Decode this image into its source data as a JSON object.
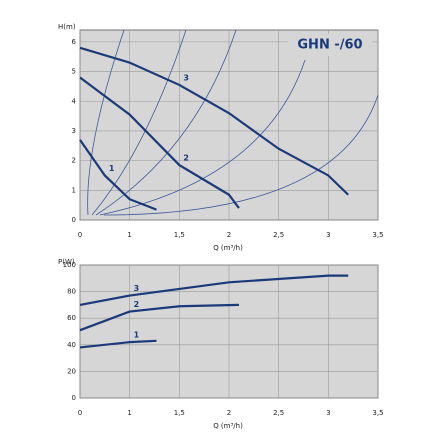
{
  "chart_data": [
    {
      "type": "line",
      "title": "GHN -/60",
      "ylabel": "H(m)",
      "xlabel": "Q (m³/h)",
      "xlim": [
        0.5,
        3.5
      ],
      "xticks": [
        {
          "value": 0.5,
          "label": "0"
        },
        1,
        {
          "value": 1.5,
          "label": "1,5"
        },
        2,
        {
          "value": 2.5,
          "label": "2,5"
        },
        3,
        {
          "value": 3.5,
          "label": "3,5"
        }
      ],
      "ylim": [
        0,
        6.4
      ],
      "yticks": [
        0,
        1,
        2,
        3,
        4,
        5,
        6
      ],
      "grid": true,
      "series": [
        {
          "name": "1",
          "color": "#1a3a7a",
          "x": [
            0.5,
            0.75,
            1.0,
            1.27
          ],
          "values": [
            2.7,
            1.5,
            0.7,
            0.35
          ]
        },
        {
          "name": "2",
          "color": "#1a3a7a",
          "x": [
            0.5,
            1.0,
            1.5,
            2.0,
            2.1
          ],
          "values": [
            4.8,
            3.55,
            1.85,
            0.85,
            0.4
          ]
        },
        {
          "name": "3",
          "color": "#1a3a7a",
          "x": [
            0.5,
            1.0,
            1.5,
            2.0,
            2.5,
            3.0,
            3.2
          ],
          "values": [
            5.8,
            5.3,
            4.55,
            3.6,
            2.4,
            1.5,
            0.85
          ]
        }
      ]
    },
    {
      "type": "line",
      "ylabel": "P(W)",
      "xlabel": "Q (m³/h)",
      "xlim": [
        0.5,
        3.5
      ],
      "xticks": [
        {
          "value": 0.5,
          "label": "0"
        },
        1,
        {
          "value": 1.5,
          "label": "1,5"
        },
        2,
        {
          "value": 2.5,
          "label": "2,5"
        },
        3,
        {
          "value": 3.5,
          "label": "3,5"
        }
      ],
      "ylim": [
        0,
        100
      ],
      "yticks": [
        0,
        20,
        40,
        60,
        80,
        100
      ],
      "grid": true,
      "series": [
        {
          "name": "1",
          "color": "#1a3a7a",
          "x": [
            0.5,
            1.0,
            1.27
          ],
          "values": [
            38,
            42,
            43
          ]
        },
        {
          "name": "2",
          "color": "#1a3a7a",
          "x": [
            0.5,
            1.0,
            1.5,
            2.1
          ],
          "values": [
            51,
            65,
            69,
            70
          ]
        },
        {
          "name": "3",
          "color": "#1a3a7a",
          "x": [
            0.5,
            1.0,
            2.0,
            3.0,
            3.2
          ],
          "values": [
            70,
            77,
            87,
            92,
            92
          ]
        }
      ]
    }
  ]
}
